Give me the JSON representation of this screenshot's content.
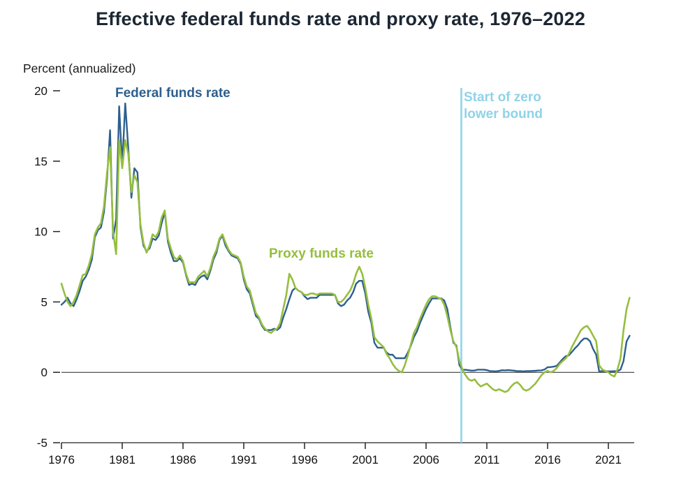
{
  "chart_data": {
    "type": "line",
    "title": "Effective federal funds rate and proxy rate, 1976–2022",
    "ylabel": "Percent (annualized)",
    "xlabel": "",
    "ylim": [
      -5,
      20
    ],
    "y_ticks": [
      20,
      15,
      10,
      5,
      0,
      -5
    ],
    "x_ticks": [
      1976,
      1981,
      1986,
      1991,
      1996,
      2001,
      2006,
      2011,
      2016,
      2021
    ],
    "x_start": 1976.0,
    "x_step": 0.25,
    "grid": false,
    "zero_line": true,
    "legend_position": "inline-annotations",
    "annotations": {
      "federal_funds_label": "Federal funds rate",
      "proxy_funds_label": "Proxy funds rate",
      "zlb_label": "Start of zero lower bound",
      "zlb_line_x": 2008.9
    },
    "colors": {
      "federal_funds": "#2d5f8e",
      "proxy": "#96be3f",
      "zlb_line": "#8fd3e8",
      "axis": "#222222"
    },
    "series": [
      {
        "name": "Federal funds rate",
        "color_key": "federal_funds",
        "values": [
          4.8,
          5.0,
          5.3,
          4.9,
          4.7,
          5.2,
          5.8,
          6.5,
          6.8,
          7.3,
          8.0,
          9.6,
          10.1,
          10.3,
          11.4,
          13.8,
          17.2,
          9.5,
          10.9,
          18.9,
          14.7,
          19.1,
          15.9,
          12.4,
          14.5,
          14.2,
          10.3,
          9.0,
          8.6,
          8.8,
          9.5,
          9.4,
          9.7,
          10.6,
          11.4,
          9.3,
          8.5,
          7.9,
          7.9,
          8.1,
          7.8,
          6.9,
          6.2,
          6.3,
          6.2,
          6.6,
          6.8,
          6.9,
          6.6,
          7.2,
          8.0,
          8.5,
          9.4,
          9.7,
          9.0,
          8.6,
          8.3,
          8.2,
          8.1,
          7.7,
          6.6,
          5.9,
          5.6,
          4.8,
          4.0,
          3.8,
          3.3,
          3.0,
          3.0,
          3.0,
          3.1,
          3.0,
          3.2,
          3.9,
          4.5,
          5.2,
          5.8,
          6.0,
          5.8,
          5.7,
          5.4,
          5.2,
          5.3,
          5.3,
          5.3,
          5.5,
          5.5,
          5.5,
          5.5,
          5.5,
          5.5,
          4.9,
          4.7,
          4.8,
          5.1,
          5.3,
          5.7,
          6.3,
          6.5,
          6.5,
          5.6,
          4.3,
          3.5,
          2.1,
          1.75,
          1.75,
          1.75,
          1.4,
          1.25,
          1.25,
          1.0,
          1.0,
          1.0,
          1.0,
          1.4,
          1.9,
          2.5,
          2.9,
          3.5,
          4.0,
          4.5,
          4.9,
          5.25,
          5.25,
          5.25,
          5.25,
          5.1,
          4.5,
          3.2,
          2.1,
          1.9,
          0.5,
          0.18,
          0.18,
          0.15,
          0.12,
          0.13,
          0.19,
          0.19,
          0.19,
          0.16,
          0.09,
          0.08,
          0.07,
          0.1,
          0.15,
          0.14,
          0.16,
          0.14,
          0.12,
          0.08,
          0.09,
          0.07,
          0.09,
          0.09,
          0.1,
          0.11,
          0.13,
          0.14,
          0.2,
          0.36,
          0.37,
          0.4,
          0.45,
          0.7,
          0.95,
          1.15,
          1.2,
          1.45,
          1.7,
          1.92,
          2.2,
          2.4,
          2.4,
          2.2,
          1.65,
          1.25,
          0.06,
          0.09,
          0.09,
          0.07,
          0.07,
          0.08,
          0.08,
          0.2,
          0.8,
          2.2,
          2.6
        ]
      },
      {
        "name": "Proxy funds rate",
        "color_key": "proxy",
        "values": [
          6.3,
          5.6,
          5.0,
          4.7,
          5.0,
          5.5,
          6.2,
          6.9,
          7.0,
          7.6,
          8.4,
          9.8,
          10.3,
          10.6,
          11.8,
          14.2,
          16.0,
          10.0,
          8.4,
          16.5,
          14.5,
          16.5,
          15.5,
          12.8,
          14.0,
          13.5,
          10.5,
          9.2,
          8.5,
          9.0,
          9.8,
          9.6,
          10.0,
          11.0,
          11.5,
          9.5,
          8.8,
          8.2,
          8.0,
          8.3,
          7.9,
          7.0,
          6.4,
          6.4,
          6.4,
          6.8,
          7.0,
          7.2,
          6.8,
          7.4,
          8.2,
          8.7,
          9.5,
          9.8,
          9.2,
          8.7,
          8.4,
          8.3,
          8.2,
          7.8,
          6.8,
          6.1,
          5.8,
          5.0,
          4.2,
          3.9,
          3.4,
          3.1,
          2.9,
          2.8,
          3.0,
          3.1,
          3.5,
          4.5,
          5.5,
          7.0,
          6.6,
          6.0,
          5.8,
          5.7,
          5.5,
          5.5,
          5.6,
          5.6,
          5.5,
          5.6,
          5.6,
          5.6,
          5.6,
          5.6,
          5.5,
          5.0,
          5.0,
          5.2,
          5.5,
          5.8,
          6.3,
          7.0,
          7.5,
          7.0,
          6.0,
          4.8,
          3.8,
          2.5,
          2.2,
          2.0,
          1.8,
          1.3,
          1.0,
          0.6,
          0.3,
          0.1,
          0.0,
          0.5,
          1.2,
          2.0,
          2.8,
          3.2,
          3.8,
          4.3,
          4.8,
          5.2,
          5.4,
          5.4,
          5.3,
          5.2,
          4.8,
          4.0,
          3.0,
          2.2,
          1.8,
          0.8,
          0.2,
          -0.2,
          -0.5,
          -0.6,
          -0.5,
          -0.8,
          -1.0,
          -0.9,
          -0.8,
          -1.0,
          -1.2,
          -1.3,
          -1.2,
          -1.3,
          -1.4,
          -1.3,
          -1.0,
          -0.8,
          -0.7,
          -0.9,
          -1.2,
          -1.3,
          -1.2,
          -1.0,
          -0.8,
          -0.5,
          -0.2,
          0.0,
          0.1,
          0.0,
          0.1,
          0.3,
          0.6,
          0.8,
          1.0,
          1.3,
          1.8,
          2.2,
          2.6,
          3.0,
          3.2,
          3.3,
          3.0,
          2.6,
          2.2,
          0.5,
          0.2,
          0.1,
          0.0,
          -0.2,
          -0.3,
          0.2,
          1.0,
          3.0,
          4.5,
          5.3
        ]
      }
    ]
  }
}
